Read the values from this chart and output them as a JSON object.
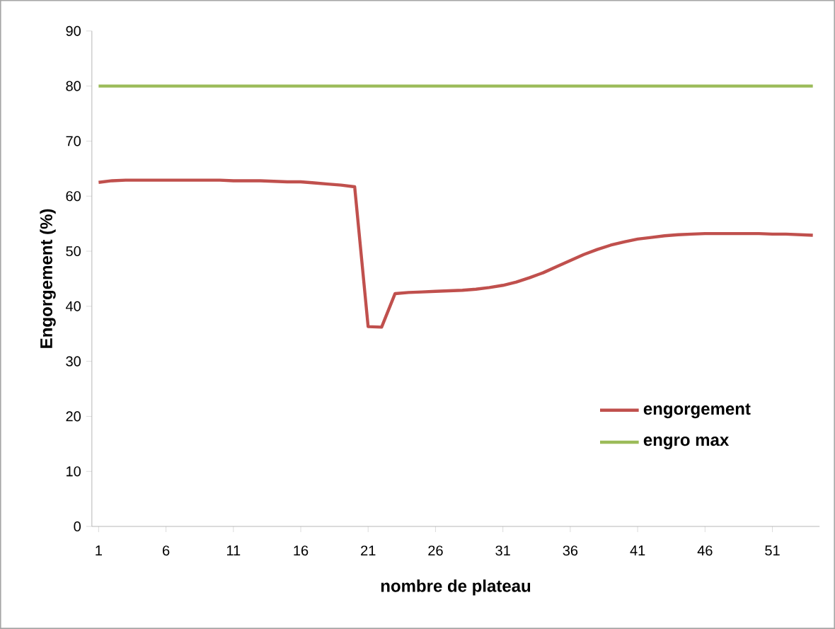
{
  "chart_data": {
    "type": "line",
    "xlabel": "nombre de plateau",
    "ylabel": "Engorgement (%)",
    "x": [
      1,
      2,
      3,
      4,
      5,
      6,
      7,
      8,
      9,
      10,
      11,
      12,
      13,
      14,
      15,
      16,
      17,
      18,
      19,
      20,
      21,
      22,
      23,
      24,
      25,
      26,
      27,
      28,
      29,
      30,
      31,
      32,
      33,
      34,
      35,
      36,
      37,
      38,
      39,
      40,
      41,
      42,
      43,
      44,
      45,
      46,
      47,
      48,
      49,
      50,
      51,
      52,
      53,
      54
    ],
    "xlim": [
      0.5,
      54.5
    ],
    "xticks": [
      1,
      6,
      11,
      16,
      21,
      26,
      31,
      36,
      41,
      46,
      51
    ],
    "ylim": [
      0,
      90
    ],
    "yticks": [
      0,
      10,
      20,
      30,
      40,
      50,
      60,
      70,
      80,
      90
    ],
    "legend": "right",
    "marker": "none",
    "series": [
      {
        "name": "engorgement",
        "color": "#c0504d",
        "values": [
          62.5,
          62.8,
          62.9,
          62.9,
          62.9,
          62.9,
          62.9,
          62.9,
          62.9,
          62.9,
          62.8,
          62.8,
          62.8,
          62.7,
          62.6,
          62.6,
          62.4,
          62.2,
          62.0,
          61.7,
          36.3,
          36.2,
          42.3,
          42.5,
          42.6,
          42.7,
          42.8,
          42.9,
          43.1,
          43.4,
          43.8,
          44.4,
          45.2,
          46.1,
          47.2,
          48.3,
          49.4,
          50.3,
          51.1,
          51.7,
          52.2,
          52.5,
          52.8,
          53.0,
          53.1,
          53.2,
          53.2,
          53.2,
          53.2,
          53.2,
          53.1,
          53.1,
          53.0,
          52.9
        ]
      },
      {
        "name": "engro max",
        "color": "#9bbb59",
        "values": [
          80,
          80,
          80,
          80,
          80,
          80,
          80,
          80,
          80,
          80,
          80,
          80,
          80,
          80,
          80,
          80,
          80,
          80,
          80,
          80,
          80,
          80,
          80,
          80,
          80,
          80,
          80,
          80,
          80,
          80,
          80,
          80,
          80,
          80,
          80,
          80,
          80,
          80,
          80,
          80,
          80,
          80,
          80,
          80,
          80,
          80,
          80,
          80,
          80,
          80,
          80,
          80,
          80,
          80
        ]
      }
    ]
  }
}
